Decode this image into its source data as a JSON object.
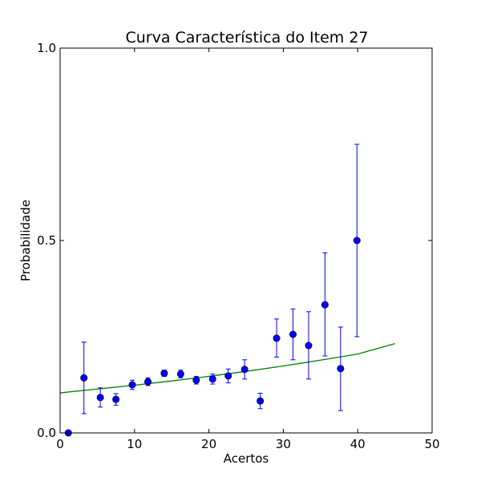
{
  "chart_data": {
    "type": "scatter",
    "title": "Curva Característica do Item 27",
    "xlabel": "Acertos",
    "ylabel": "Probabilidade",
    "xlim": [
      0,
      50
    ],
    "ylim": [
      0,
      1
    ],
    "xticks": [
      0,
      10,
      20,
      30,
      40,
      50
    ],
    "xtick_labels": [
      "0",
      "10",
      "20",
      "30",
      "40",
      "50"
    ],
    "yticks": [
      0,
      0.5,
      1
    ],
    "ytick_labels": [
      "0.0",
      "0.5",
      "1.0"
    ],
    "grid": false,
    "series": [
      {
        "kind": "points_with_error_bars",
        "color": "#0000ff",
        "x": [
          1.1,
          3.2,
          5.4,
          7.5,
          9.7,
          11.8,
          14.0,
          16.2,
          18.3,
          20.5,
          22.6,
          24.8,
          26.9,
          29.1,
          31.3,
          33.4,
          35.6,
          37.7,
          39.9
        ],
        "y": [
          0.0,
          0.143,
          0.092,
          0.087,
          0.125,
          0.133,
          0.155,
          0.153,
          0.137,
          0.14,
          0.148,
          0.165,
          0.083,
          0.246,
          0.256,
          0.227,
          0.333,
          0.167,
          0.5
        ],
        "y_low": [
          0.0,
          0.05,
          0.067,
          0.072,
          0.113,
          0.123,
          0.147,
          0.143,
          0.127,
          0.127,
          0.13,
          0.14,
          0.063,
          0.197,
          0.19,
          0.14,
          0.2,
          0.058,
          0.25
        ],
        "y_high": [
          0.0,
          0.236,
          0.117,
          0.102,
          0.137,
          0.143,
          0.163,
          0.163,
          0.147,
          0.153,
          0.166,
          0.19,
          0.103,
          0.296,
          0.322,
          0.315,
          0.468,
          0.275,
          0.75
        ]
      },
      {
        "kind": "fit_line",
        "color": "#008000",
        "x": [
          0,
          5,
          10,
          15,
          20,
          25,
          30,
          35,
          40,
          45
        ],
        "y": [
          0.104,
          0.114,
          0.124,
          0.135,
          0.147,
          0.16,
          0.174,
          0.189,
          0.205,
          0.232
        ]
      }
    ]
  }
}
